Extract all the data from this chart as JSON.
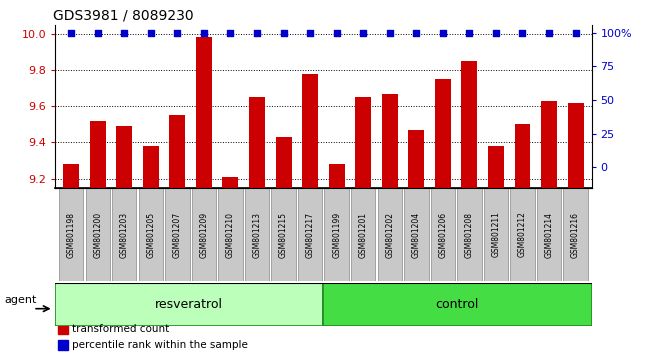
{
  "title": "GDS3981 / 8089230",
  "samples": [
    "GSM801198",
    "GSM801200",
    "GSM801203",
    "GSM801205",
    "GSM801207",
    "GSM801209",
    "GSM801210",
    "GSM801213",
    "GSM801215",
    "GSM801217",
    "GSM801199",
    "GSM801201",
    "GSM801202",
    "GSM801204",
    "GSM801206",
    "GSM801208",
    "GSM801211",
    "GSM801212",
    "GSM801214",
    "GSM801216"
  ],
  "bar_values": [
    9.28,
    9.52,
    9.49,
    9.38,
    9.55,
    9.98,
    9.21,
    9.65,
    9.43,
    9.78,
    9.28,
    9.65,
    9.67,
    9.47,
    9.75,
    9.85,
    9.38,
    9.5,
    9.63,
    9.62
  ],
  "percentile_values": [
    100,
    100,
    100,
    100,
    100,
    100,
    100,
    100,
    100,
    100,
    100,
    100,
    100,
    100,
    100,
    100,
    100,
    100,
    100,
    100
  ],
  "bar_color": "#cc0000",
  "dot_color": "#0000cc",
  "ylim_left": [
    9.15,
    10.05
  ],
  "ylim_right": [
    -15,
    106
  ],
  "yticks_left": [
    9.2,
    9.4,
    9.6,
    9.8,
    10.0
  ],
  "yticks_right": [
    0,
    25,
    50,
    75,
    100
  ],
  "ytick_right_labels": [
    "0",
    "25",
    "50",
    "75",
    "100%"
  ],
  "resveratrol_samples": 10,
  "control_samples": 10,
  "group_labels": [
    "resveratrol",
    "control"
  ],
  "resv_color": "#bbffbb",
  "ctrl_color": "#44dd44",
  "agent_label": "agent",
  "legend_items": [
    {
      "label": "transformed count",
      "color": "#cc0000"
    },
    {
      "label": "percentile rank within the sample",
      "color": "#0000cc"
    }
  ],
  "bar_width": 0.6,
  "tick_label_color_left": "#cc0000",
  "tick_label_color_right": "#0000cc",
  "xlim": [
    -0.6,
    19.6
  ]
}
